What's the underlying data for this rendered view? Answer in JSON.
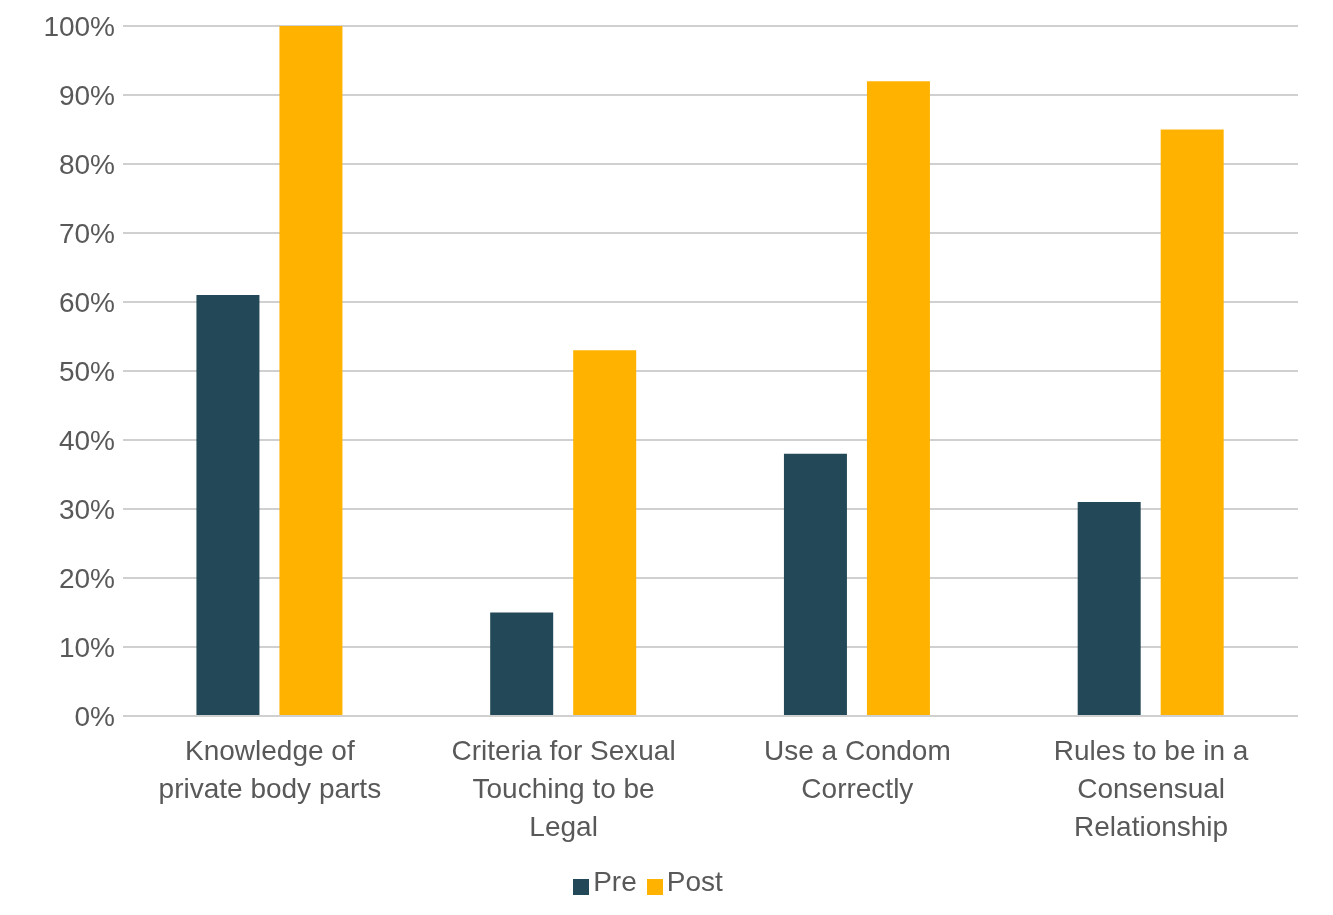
{
  "chart_data": {
    "type": "bar",
    "categories": [
      "Knowledge of private body parts",
      "Criteria for Sexual Touching to be Legal",
      "Use a Condom Correctly",
      "Rules to be in a Consensual Relationship"
    ],
    "series": [
      {
        "name": "Pre",
        "color": "#234857",
        "values": [
          61,
          15,
          38,
          31
        ]
      },
      {
        "name": "Post",
        "color": "#ffb300",
        "values": [
          100,
          53,
          92,
          85
        ]
      }
    ],
    "ylim": [
      0,
      100
    ],
    "yticks": [
      {
        "value": 0,
        "label": "0%"
      },
      {
        "value": 10,
        "label": "10%"
      },
      {
        "value": 20,
        "label": "20%"
      },
      {
        "value": 30,
        "label": "30%"
      },
      {
        "value": 40,
        "label": "40%"
      },
      {
        "value": 50,
        "label": "50%"
      },
      {
        "value": 60,
        "label": "60%"
      },
      {
        "value": 70,
        "label": "70%"
      },
      {
        "value": 80,
        "label": "80%"
      },
      {
        "value": 90,
        "label": "90%"
      },
      {
        "value": 100,
        "label": "100%"
      }
    ],
    "grid": "y",
    "legend": "bottom"
  }
}
